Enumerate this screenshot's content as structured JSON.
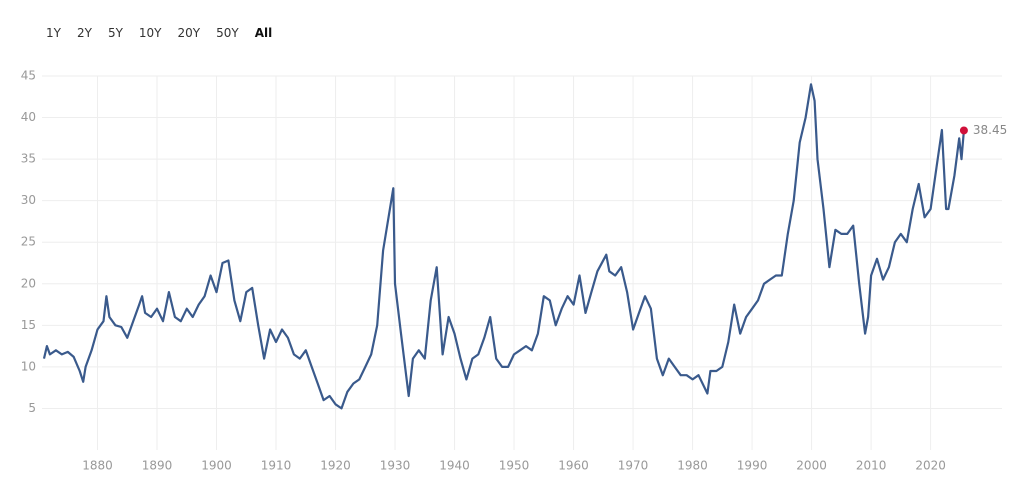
{
  "range_buttons": [
    "1Y",
    "2Y",
    "5Y",
    "10Y",
    "20Y",
    "50Y",
    "All"
  ],
  "selected_button": 6,
  "chart_data": {
    "type": "line",
    "x": [
      1871.0,
      1871.5,
      1872,
      1873,
      1874,
      1875,
      1876,
      1877,
      1877.6,
      1878,
      1879,
      1880,
      1881,
      1881.5,
      1882,
      1883,
      1884,
      1885,
      1886,
      1887,
      1887.5,
      1888,
      1889,
      1890,
      1891,
      1892,
      1893,
      1894,
      1895,
      1896,
      1897,
      1898,
      1899,
      1900,
      1901,
      1902,
      1903,
      1904,
      1905,
      1906,
      1907,
      1908,
      1909,
      1910,
      1911,
      1912,
      1913,
      1914,
      1915,
      1916,
      1917,
      1918,
      1919,
      1920,
      1921,
      1922,
      1923,
      1924,
      1925,
      1926,
      1927,
      1928,
      1929.7,
      1930,
      1931,
      1932.3,
      1933,
      1934,
      1935,
      1936,
      1937,
      1938,
      1939,
      1940,
      1941,
      1942,
      1943,
      1944,
      1945,
      1946,
      1947,
      1948,
      1949,
      1950,
      1951,
      1952,
      1953,
      1954,
      1955,
      1956,
      1957,
      1958,
      1959,
      1960,
      1961,
      1962,
      1963,
      1964,
      1965.5,
      1966,
      1967,
      1968,
      1969,
      1970,
      1971,
      1972,
      1973,
      1974,
      1975,
      1976,
      1977,
      1978,
      1979,
      1980,
      1981,
      1982.5,
      1983,
      1984,
      1985,
      1986,
      1987,
      1988,
      1989,
      1990,
      1991,
      1992,
      1993,
      1994,
      1995,
      1996,
      1997,
      1998,
      1999,
      1999.9,
      2000.5,
      2001,
      2002,
      2003,
      2004,
      2005,
      2006,
      2007,
      2008,
      2009,
      2009.5,
      2010,
      2011,
      2012,
      2013,
      2014,
      2015,
      2016,
      2017,
      2018,
      2019,
      2020,
      2021,
      2021.9,
      2022.6,
      2023,
      2024,
      2024.8,
      2025.2,
      2025.6
    ],
    "series": [
      {
        "color": "#3a5a8c",
        "marker_color": "#d0103a",
        "values": [
          11.0,
          12.5,
          11.5,
          12.0,
          11.5,
          11.8,
          11.2,
          9.5,
          8.2,
          10,
          12,
          14.5,
          15.5,
          18.5,
          16,
          15,
          14.8,
          13.5,
          15.5,
          17.5,
          18.5,
          16.5,
          16,
          17,
          15.5,
          19,
          16,
          15.5,
          17,
          16,
          17.5,
          18.5,
          21,
          19,
          22.5,
          22.8,
          18,
          15.5,
          19,
          19.5,
          15,
          11,
          14.5,
          13,
          14.5,
          13.5,
          11.5,
          11,
          12,
          10,
          8,
          6,
          6.5,
          5.5,
          5,
          7,
          8,
          8.5,
          10,
          11.5,
          15,
          24,
          31.5,
          20,
          14,
          6.5,
          11,
          12,
          11,
          18,
          22,
          11.5,
          16,
          14,
          11,
          8.5,
          11,
          11.5,
          13.5,
          16,
          11,
          10,
          10,
          11.5,
          12,
          12.5,
          12,
          14,
          18.5,
          18,
          15,
          17,
          18.5,
          17.5,
          21,
          16.5,
          19,
          21.5,
          23.5,
          21.5,
          21,
          22,
          19,
          14.5,
          16.5,
          18.5,
          17,
          11,
          9,
          11,
          10,
          9,
          9,
          8.5,
          9,
          6.8,
          9.5,
          9.5,
          10,
          13,
          17.5,
          14,
          16,
          17,
          18,
          20,
          20.5,
          21,
          21,
          26,
          30,
          37,
          40,
          44,
          42,
          35,
          29,
          22,
          26.5,
          26,
          26,
          27,
          20,
          14,
          16,
          21,
          23,
          20.5,
          22,
          25,
          26,
          25,
          29,
          32,
          28,
          29,
          34,
          38.5,
          29,
          29,
          33,
          37.5,
          35,
          38.45
        ]
      }
    ],
    "xlim": [
      1870,
      2032
    ],
    "ylim": [
      0,
      45
    ],
    "xticks": [
      1880,
      1890,
      1900,
      1910,
      1920,
      1930,
      1940,
      1950,
      1960,
      1970,
      1980,
      1990,
      2000,
      2010,
      2020
    ],
    "yticks": [
      5,
      10,
      15,
      20,
      25,
      30,
      35,
      40,
      45
    ],
    "grid": true
  }
}
